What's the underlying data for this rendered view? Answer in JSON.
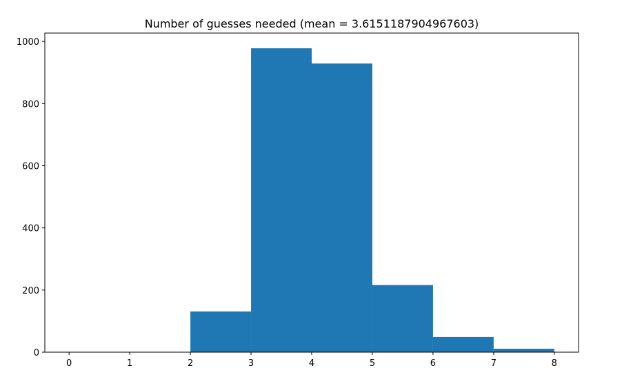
{
  "chart_data": {
    "type": "bar",
    "title": "Number of guesses needed (mean = 3.6151187904967603)",
    "xlabel": "",
    "ylabel": "",
    "bins": [
      {
        "x0": 2,
        "x1": 3,
        "count": 131
      },
      {
        "x0": 3,
        "x1": 4,
        "count": 978
      },
      {
        "x0": 4,
        "x1": 5,
        "count": 929
      },
      {
        "x0": 5,
        "x1": 6,
        "count": 216
      },
      {
        "x0": 6,
        "x1": 7,
        "count": 49
      },
      {
        "x0": 7,
        "x1": 8,
        "count": 11
      }
    ],
    "xlim": [
      -0.4,
      8.4
    ],
    "ylim": [
      0,
      1027
    ],
    "xticks": [
      0,
      1,
      2,
      3,
      4,
      5,
      6,
      7,
      8
    ],
    "yticks": [
      0,
      200,
      400,
      600,
      800,
      1000
    ],
    "bar_color": "#1f77b4",
    "grid": false,
    "legend": "none"
  }
}
